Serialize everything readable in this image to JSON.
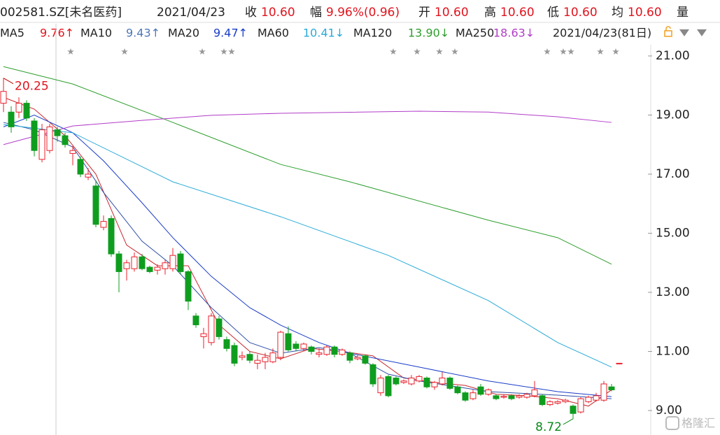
{
  "header": {
    "symbol": "002581.SZ[未名医药]",
    "date": "2021/04/23",
    "quote": [
      {
        "label": "收",
        "value": "10.60"
      },
      {
        "label": "幅",
        "value": "9.96%(0.96)"
      },
      {
        "label": "开",
        "value": "10.60"
      },
      {
        "label": "高",
        "value": "10.60"
      },
      {
        "label": "低",
        "value": "10.60"
      },
      {
        "label": "均",
        "value": "10.60"
      }
    ],
    "volume_label": "量",
    "range": "2021/04/23(81日)"
  },
  "watermark": "格隆汇",
  "chart_data": {
    "type": "candlestick",
    "open": [
      19.4,
      19.1,
      19.1,
      19.4,
      18.8,
      17.5,
      17.8,
      18.5,
      18.3,
      17.7,
      17.5,
      16.9,
      16.6,
      15.2,
      15.5,
      14.3,
      13.8,
      13.8,
      14.2,
      13.85,
      13.75,
      13.8,
      13.8,
      14.3,
      13.7,
      12.2,
      11.5,
      11.3,
      12.1,
      11.4,
      11.2,
      10.8,
      10.9,
      10.6,
      10.65,
      10.65,
      10.8,
      11.6,
      11.25,
      11.1,
      11.15,
      10.9,
      10.9,
      11.15,
      10.9,
      10.95,
      10.75,
      10.85,
      10.55,
      9.6,
      10.15,
      10.1,
      9.95,
      9.9,
      10.0,
      10.1,
      9.8,
      9.9,
      10.1,
      9.8,
      9.6,
      9.4,
      9.8,
      9.55,
      9.5,
      9.45,
      9.5,
      9.45,
      9.45,
      9.5,
      9.5,
      9.2,
      9.25,
      9.3,
      9.15,
      8.95,
      9.3,
      9.35,
      9.35,
      9.8,
      10.6
    ],
    "high": [
      20.25,
      19.3,
      19.6,
      19.5,
      18.9,
      18.7,
      18.7,
      18.6,
      18.4,
      17.95,
      17.6,
      17.2,
      16.8,
      15.6,
      15.6,
      14.4,
      14.1,
      14.35,
      14.3,
      13.9,
      13.95,
      14.1,
      14.5,
      14.4,
      13.75,
      12.3,
      11.8,
      12.3,
      12.2,
      11.5,
      11.3,
      11.0,
      11.0,
      10.9,
      10.95,
      11.1,
      11.7,
      11.85,
      11.35,
      11.3,
      11.2,
      11.1,
      11.2,
      11.2,
      11.1,
      11.0,
      10.9,
      10.9,
      10.6,
      10.2,
      10.2,
      10.15,
      10.05,
      10.2,
      10.2,
      10.15,
      10.0,
      10.3,
      10.15,
      9.85,
      9.65,
      9.7,
      9.9,
      9.75,
      9.55,
      9.55,
      9.55,
      9.55,
      9.6,
      10.0,
      9.55,
      9.35,
      9.35,
      9.4,
      9.2,
      9.45,
      9.5,
      9.6,
      10.0,
      9.9,
      10.6
    ],
    "low": [
      19.1,
      18.4,
      18.9,
      18.8,
      17.6,
      17.4,
      17.7,
      18.1,
      17.9,
      17.3,
      16.9,
      16.8,
      15.2,
      15.1,
      14.2,
      13.0,
      13.4,
      13.7,
      13.75,
      13.65,
      13.6,
      13.6,
      13.7,
      13.6,
      12.4,
      11.8,
      11.1,
      11.2,
      11.4,
      11.0,
      10.5,
      10.7,
      10.6,
      10.4,
      10.4,
      10.6,
      10.7,
      11.0,
      11.0,
      11.0,
      10.9,
      10.8,
      10.85,
      10.8,
      10.85,
      10.6,
      10.7,
      10.55,
      9.8,
      9.5,
      9.45,
      9.85,
      9.9,
      9.85,
      9.95,
      9.75,
      9.7,
      9.85,
      9.7,
      9.55,
      9.3,
      9.35,
      9.5,
      9.5,
      9.35,
      9.4,
      9.35,
      9.4,
      9.4,
      9.45,
      9.15,
      9.15,
      9.2,
      9.25,
      8.72,
      8.9,
      9.25,
      9.3,
      9.3,
      9.65,
      10.6
    ],
    "close": [
      19.8,
      18.6,
      19.4,
      18.9,
      17.8,
      18.5,
      18.6,
      18.3,
      18.0,
      17.8,
      17.0,
      17.0,
      15.3,
      15.4,
      14.3,
      13.7,
      14.0,
      14.2,
      13.8,
      13.7,
      13.85,
      14.0,
      14.25,
      13.7,
      12.7,
      11.9,
      11.6,
      12.2,
      11.5,
      11.1,
      10.6,
      10.85,
      10.7,
      10.7,
      10.8,
      10.95,
      11.65,
      11.05,
      11.1,
      11.25,
      11.0,
      10.95,
      11.15,
      10.9,
      11.05,
      10.7,
      10.8,
      10.6,
      9.9,
      10.1,
      9.5,
      9.9,
      10.0,
      10.1,
      10.15,
      9.8,
      9.95,
      10.1,
      9.75,
      9.6,
      9.35,
      9.6,
      9.55,
      9.7,
      9.4,
      9.48,
      9.4,
      9.5,
      9.55,
      9.7,
      9.2,
      9.3,
      9.3,
      9.35,
      8.9,
      9.4,
      9.45,
      9.5,
      9.9,
      9.7,
      10.6
    ],
    "up_color": "#e8212b",
    "down_color": "#0f9d1f",
    "max_label": 20.25,
    "min_label": 8.72,
    "series": [
      {
        "name": "MA5",
        "legend_value": "9.76↑",
        "color": "#c8282f",
        "label_color": "#e0141e",
        "x": [
          0,
          4,
          8,
          12,
          16,
          20,
          24,
          28,
          32,
          36,
          40,
          44,
          48,
          52,
          56,
          60,
          64,
          68,
          72,
          76,
          79
        ],
        "values": [
          19.6,
          19.2,
          18.3,
          17.0,
          14.6,
          13.9,
          13.9,
          11.9,
          11.0,
          10.75,
          11.1,
          11.0,
          10.85,
          10.1,
          9.95,
          9.85,
          9.55,
          9.5,
          9.4,
          9.15,
          9.7
        ]
      },
      {
        "name": "MA10",
        "legend_value": "9.43↑",
        "color": "#2f4fa8",
        "label_color": "#4d78b8",
        "x": [
          0,
          4,
          9,
          13,
          18,
          22,
          27,
          32,
          36,
          41,
          45,
          50,
          54,
          63,
          72,
          79
        ],
        "values": [
          18.75,
          18.5,
          17.92,
          16.38,
          14.73,
          13.9,
          12.48,
          11.3,
          10.94,
          11.13,
          10.94,
          10.23,
          10.0,
          9.64,
          9.52,
          9.4
        ]
      },
      {
        "name": "MA20",
        "legend_value": "9.47↑",
        "color": "#1a3cc8",
        "label_color": "#1a3cc8",
        "x": [
          0,
          4,
          9,
          13,
          18,
          22,
          27,
          32,
          36,
          41,
          45,
          54,
          63,
          72,
          79
        ],
        "values": [
          18.6,
          19.0,
          18.4,
          17.45,
          16.03,
          14.85,
          13.54,
          12.48,
          11.89,
          11.3,
          10.94,
          10.47,
          10.0,
          9.64,
          9.47
        ]
      },
      {
        "name": "MA60",
        "legend_value": "10.41↓",
        "color": "#2aaad8",
        "label_color": "#2aaad8",
        "x": [
          0,
          9,
          22,
          36,
          50,
          63,
          72,
          79
        ],
        "values": [
          18.68,
          18.4,
          16.74,
          15.56,
          14.25,
          12.72,
          11.3,
          10.47
        ]
      },
      {
        "name": "MA120",
        "legend_value": "13.90↓",
        "color": "#2e9e2e",
        "label_color": "#2e9e2e",
        "x": [
          0,
          9,
          22,
          36,
          45,
          63,
          72,
          79
        ],
        "values": [
          20.64,
          20.05,
          18.75,
          17.33,
          16.74,
          15.44,
          14.85,
          13.95
        ]
      },
      {
        "name": "MA250",
        "legend_value": "18.63↓",
        "color": "#b23cc8",
        "label_color": "#b23cc8",
        "x": [
          0,
          9,
          18,
          27,
          36,
          54,
          63,
          72,
          79
        ],
        "values": [
          18.0,
          18.63,
          18.82,
          18.99,
          19.06,
          19.13,
          19.1,
          18.94,
          18.75
        ]
      }
    ],
    "ylim": [
      9,
      21
    ],
    "yticks": [
      {
        "value": 9,
        "label": "9.00"
      },
      {
        "value": 11,
        "label": "11.00"
      },
      {
        "value": 13,
        "label": "13.00"
      },
      {
        "value": 15,
        "label": "15.00"
      },
      {
        "value": 17,
        "label": "17.00"
      },
      {
        "value": 19,
        "label": "19.00"
      },
      {
        "value": 21,
        "label": "21.00"
      }
    ]
  }
}
